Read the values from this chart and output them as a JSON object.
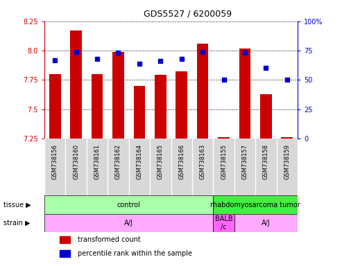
{
  "title": "GDS5527 / 6200059",
  "samples": [
    "GSM738156",
    "GSM738160",
    "GSM738161",
    "GSM738162",
    "GSM738164",
    "GSM738165",
    "GSM738166",
    "GSM738163",
    "GSM738155",
    "GSM738157",
    "GSM738158",
    "GSM738159"
  ],
  "transformed_count": [
    7.8,
    8.17,
    7.8,
    7.99,
    7.7,
    7.79,
    7.82,
    8.06,
    7.26,
    8.02,
    7.63,
    7.26
  ],
  "percentile_rank": [
    67,
    74,
    68,
    73,
    64,
    66,
    68,
    74,
    50,
    73,
    60,
    50
  ],
  "ylim_left": [
    7.25,
    8.25
  ],
  "ylim_right": [
    0,
    100
  ],
  "yticks_left": [
    7.25,
    7.5,
    7.75,
    8.0,
    8.25
  ],
  "yticks_right": [
    0,
    25,
    50,
    75,
    100
  ],
  "bar_color": "#cc0000",
  "dot_color": "#0000cc",
  "bar_width": 0.55,
  "tissue_groups": [
    {
      "label": "control",
      "start": 0,
      "end": 8,
      "color": "#aaffaa"
    },
    {
      "label": "rhabdomyosarcoma tumor",
      "start": 8,
      "end": 12,
      "color": "#44ee44"
    }
  ],
  "strain_groups": [
    {
      "label": "A/J",
      "start": 0,
      "end": 8,
      "color": "#ffaaff"
    },
    {
      "label": "BALB\n/c",
      "start": 8,
      "end": 9,
      "color": "#ff66ff"
    },
    {
      "label": "A/J",
      "start": 9,
      "end": 12,
      "color": "#ffaaff"
    }
  ],
  "legend_items": [
    {
      "color": "#cc0000",
      "label": "transformed count"
    },
    {
      "color": "#0000cc",
      "label": "percentile rank within the sample"
    }
  ],
  "sample_bg_color": "#d8d8d8",
  "left_label_color": "#000000",
  "tissue_border_color": "#000000",
  "strain_border_color": "#000000"
}
